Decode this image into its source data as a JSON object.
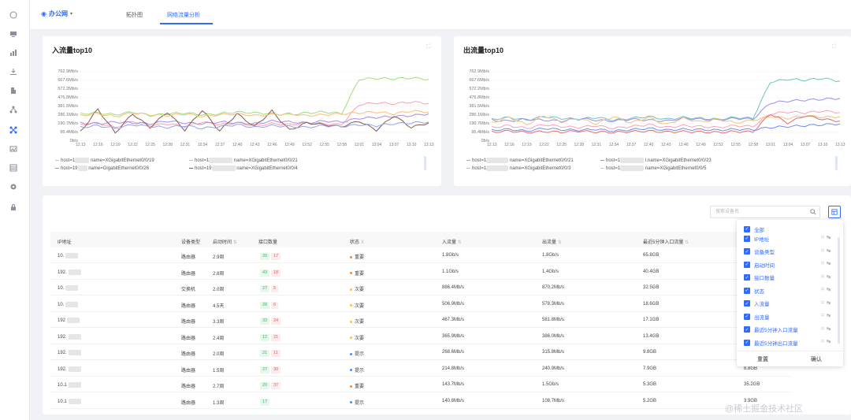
{
  "topbar": {
    "org_name": "办公网",
    "tabs": [
      {
        "label": "拓扑图"
      },
      {
        "label": "网络流量分析",
        "active": true
      }
    ]
  },
  "sidebar": {
    "icons": [
      "home-icon",
      "monitor-icon",
      "chart-icon",
      "download-icon",
      "building-icon",
      "tree-icon",
      "network-icon",
      "image-icon",
      "table-icon",
      "gear-icon",
      "lock-icon"
    ]
  },
  "charts": [
    {
      "title": "入流量top10",
      "legend": [
        {
          "host": "host=1",
          "name": "name=XGigabitEthernet0/0/19"
        },
        {
          "host": "host=1",
          "name": "name=XGigabitEthernet0/0/21"
        },
        {
          "host": "host=19",
          "name": "name=GigabitEthernet0/0/26"
        },
        {
          "host": "host=19",
          "name": "name=XGigabitEthernet0/0/4"
        }
      ]
    },
    {
      "title": "出流量top10",
      "legend": [
        {
          "host": "host=1",
          "name": "name=XGigabitEthernet0/0/21"
        },
        {
          "host": "host=1",
          "name": "l.name=XGigabitEthernet0/0/23"
        },
        {
          "host": "host=1",
          "name": "name=XGigabitEthernet0/0/3"
        },
        {
          "host": "host=1",
          "name": "name=XGigabitEthernet0/0/5"
        }
      ]
    }
  ],
  "chart_data": [
    {
      "type": "line",
      "title": "入流量top10",
      "y_ticks": [
        "762.9Mb/s",
        "667.6Mb/s",
        "572.2Mb/s",
        "476.8Mb/s",
        "381.5Mb/s",
        "286.1Mb/s",
        "190.7Mb/s",
        "95.4Mb/s",
        "0b/s"
      ],
      "x": [
        "12:13",
        "12:16",
        "12:19",
        "12:22",
        "12:25",
        "12:28",
        "12:31",
        "12:34",
        "12:37",
        "12:40",
        "12:43",
        "12:46",
        "12:49",
        "12:52",
        "12:55",
        "12:58",
        "13:01",
        "13:04",
        "13:07",
        "13:10",
        "13:13"
      ],
      "ylim": [
        0,
        762.9
      ],
      "series": [
        {
          "color": "#9be07d",
          "values": [
            300,
            310,
            290,
            320,
            280,
            300,
            310,
            290,
            300,
            320,
            310,
            300,
            290,
            310,
            320,
            300,
            680,
            690,
            685,
            695,
            680
          ]
        },
        {
          "color": "#f5a3b8",
          "values": [
            180,
            200,
            150,
            220,
            170,
            190,
            160,
            210,
            180,
            200,
            170,
            190,
            180,
            200,
            190,
            180,
            400,
            420,
            410,
            430,
            415
          ]
        },
        {
          "color": "#a98de8",
          "values": [
            200,
            190,
            210,
            200,
            190,
            220,
            200,
            190,
            210,
            200,
            190,
            220,
            210,
            200,
            220,
            210,
            250,
            260,
            270,
            280,
            300
          ]
        },
        {
          "color": "#8b5a4a",
          "values": [
            100,
            350,
            90,
            300,
            150,
            320,
            120,
            340,
            110,
            300,
            160,
            330,
            120,
            200,
            180,
            160,
            220,
            120,
            280,
            150,
            200
          ]
        },
        {
          "color": "#f2c27a",
          "values": [
            280,
            300,
            270,
            310,
            290,
            280,
            300,
            270,
            290,
            300,
            280,
            290,
            300,
            280,
            290,
            300,
            310,
            320,
            300,
            330,
            320
          ]
        },
        {
          "color": "#8fa5e8",
          "values": [
            150,
            170,
            140,
            180,
            160,
            150,
            170,
            140,
            160,
            180,
            150,
            170,
            160,
            150,
            170,
            160,
            180,
            170,
            190,
            200,
            210
          ]
        }
      ]
    },
    {
      "type": "line",
      "title": "出流量top10",
      "y_ticks": [
        "762.9Mb/s",
        "667.6Mb/s",
        "572.2Mb/s",
        "476.8Mb/s",
        "381.5Mb/s",
        "286.1Mb/s",
        "190.7Mb/s",
        "95.4Mb/s",
        "0b/s"
      ],
      "x": [
        "12:13",
        "12:16",
        "12:19",
        "12:22",
        "12:25",
        "12:28",
        "12:31",
        "12:34",
        "12:37",
        "12:40",
        "12:43",
        "12:46",
        "12:49",
        "12:52",
        "12:55",
        "12:58",
        "13:01",
        "13:04",
        "13:07",
        "13:10",
        "13:13"
      ],
      "ylim": [
        0,
        762.9
      ],
      "series": [
        {
          "color": "#6fc3c0",
          "values": [
            240,
            260,
            230,
            270,
            250,
            240,
            260,
            230,
            250,
            270,
            240,
            260,
            250,
            240,
            260,
            250,
            650,
            680,
            670,
            690,
            660
          ]
        },
        {
          "color": "#9b8ee8",
          "values": [
            230,
            220,
            240,
            230,
            220,
            250,
            230,
            220,
            240,
            230,
            220,
            250,
            240,
            230,
            250,
            240,
            420,
            440,
            450,
            460,
            470
          ]
        },
        {
          "color": "#f5a3b8",
          "values": [
            150,
            170,
            140,
            180,
            160,
            150,
            170,
            140,
            160,
            180,
            150,
            170,
            160,
            150,
            170,
            160,
            300,
            320,
            310,
            330,
            315
          ]
        },
        {
          "color": "#f2c27a",
          "values": [
            200,
            260,
            180,
            280,
            210,
            250,
            190,
            270,
            200,
            260,
            180,
            250,
            210,
            240,
            200,
            230,
            270,
            250,
            280,
            260,
            270
          ]
        },
        {
          "color": "#e06b6b",
          "values": [
            100,
            110,
            95,
            105,
            100,
            110,
            100,
            95,
            105,
            110,
            100,
            105,
            100,
            95,
            105,
            100,
            300,
            200,
            280,
            240,
            220
          ]
        },
        {
          "color": "#6e8de8",
          "values": [
            120,
            130,
            110,
            140,
            125,
            120,
            130,
            110,
            125,
            140,
            120,
            130,
            125,
            120,
            130,
            125,
            150,
            160,
            170,
            180,
            190
          ]
        }
      ]
    }
  ],
  "table": {
    "search_placeholder": "搜索设备名",
    "columns": [
      "IP地址",
      "设备类型",
      "启动时间",
      "接口数量",
      "状态",
      "入流量",
      "出流量",
      "最近5分钟入口流量"
    ],
    "rows": [
      {
        "ip": "10.",
        "type": "路由器",
        "uptime": "2.9周",
        "up": "20",
        "down": "17",
        "status": "重要",
        "status_color": "#f08a3c",
        "in": "1.8Gb/s",
        "out": "1.8Gb/s",
        "in5": "65.8GB",
        "out5": ""
      },
      {
        "ip": "192.",
        "type": "路由器",
        "uptime": "2.8周",
        "up": "43",
        "down": "18",
        "status": "重要",
        "status_color": "#f08a3c",
        "in": "1.1Gb/s",
        "out": "1.4Gb/s",
        "in5": "40.4GB",
        "out5": ""
      },
      {
        "ip": "10.",
        "type": "交换机",
        "uptime": "2.0周",
        "up": "27",
        "down": "5",
        "status": "次要",
        "status_color": "#f5c242",
        "in": "886.4Mb/s",
        "out": "870.2Mb/s",
        "in5": "32.5GB",
        "out5": ""
      },
      {
        "ip": "10.",
        "type": "路由器",
        "uptime": "4.5天",
        "up": "28",
        "down": "6",
        "status": "次要",
        "status_color": "#f5c242",
        "in": "506.9Mb/s",
        "out": "578.3Mb/s",
        "in5": "18.6GB",
        "out5": ""
      },
      {
        "ip": "192",
        "type": "路由器",
        "uptime": "3.3周",
        "up": "33",
        "down": "24",
        "status": "次要",
        "status_color": "#f5c242",
        "in": "467.3Mb/s",
        "out": "581.8Mb/s",
        "in5": "17.1GB",
        "out5": ""
      },
      {
        "ip": "192.",
        "type": "路由器",
        "uptime": "2.4周",
        "up": "12",
        "down": "21",
        "status": "次要",
        "status_color": "#f5c242",
        "in": "365.9Mb/s",
        "out": "386.0Mb/s",
        "in5": "13.4GB",
        "out5": ""
      },
      {
        "ip": "192.",
        "type": "路由器",
        "uptime": "2.0周",
        "up": "21",
        "down": "11",
        "status": "提示",
        "status_color": "#4a90e2",
        "in": "268.6Mb/s",
        "out": "315.8Mb/s",
        "in5": "9.8GB",
        "out5": ""
      },
      {
        "ip": "192.",
        "type": "路由器",
        "uptime": "1.5周",
        "up": "27",
        "down": "30",
        "status": "提示",
        "status_color": "#4a90e2",
        "in": "214.8Mb/s",
        "out": "240.9Mb/s",
        "in5": "7.9GB",
        "out5": "8.8GB"
      },
      {
        "ip": "10.1",
        "type": "路由器",
        "uptime": "2.7周",
        "up": "20",
        "down": "37",
        "status": "重要",
        "status_color": "#f08a3c",
        "in": "143.7Mb/s",
        "out": "1.5Gb/s",
        "in5": "5.3GB",
        "out5": "35.2GB"
      },
      {
        "ip": "10.1",
        "type": "路由器",
        "uptime": "1.3周",
        "up": "17",
        "down": "",
        "status": "提示",
        "status_color": "#4a90e2",
        "in": "140.8Mb/s",
        "out": "108.7Mb/s",
        "in5": "5.2GB",
        "out5": "3.9GB"
      }
    ]
  },
  "column_panel": {
    "all_label": "全部",
    "items": [
      "IP地址",
      "设备类型",
      "启动时间",
      "接口数量",
      "状态",
      "入流量",
      "出流量",
      "最近5分钟入口流量",
      "最近5分钟出口流量"
    ],
    "reset_label": "重置",
    "confirm_label": "确认"
  },
  "watermark": "@稀土掘金技术社区"
}
